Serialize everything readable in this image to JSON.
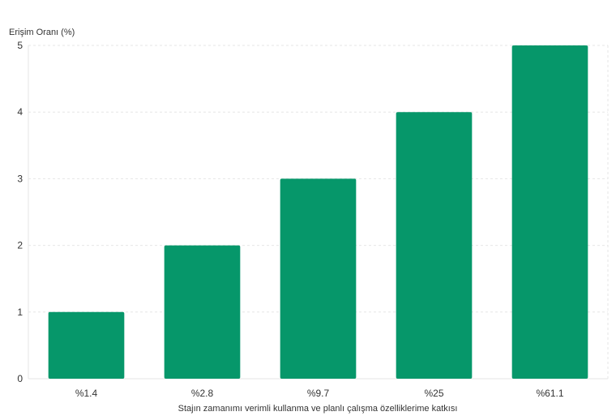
{
  "chart_data": {
    "type": "bar",
    "ylabel": "Erişim Oranı (%)",
    "xlabel": "Stajın zamanımı verimli kullanma ve planlı çalışma özelliklerime katkısı",
    "categories": [
      "%1.4",
      "%2.8",
      "%9.7",
      "%25",
      "%61.1"
    ],
    "values": [
      1,
      2,
      3,
      4,
      5
    ],
    "ylim": [
      0,
      5
    ],
    "yticks": [
      0,
      1,
      2,
      3,
      4,
      5
    ],
    "grid": true,
    "bar_color": "#06976a"
  }
}
